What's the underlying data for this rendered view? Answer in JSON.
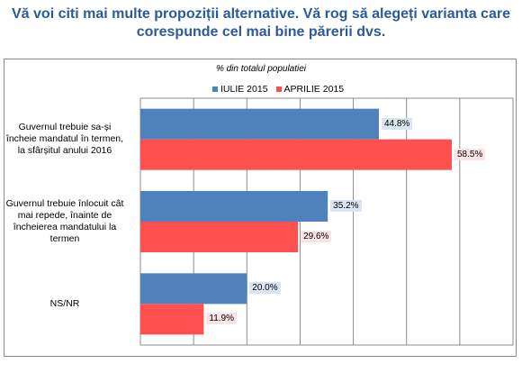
{
  "title": {
    "line1": "Vă voi citi mai multe propoziții alternative. Vă rog să alegeți varianta care",
    "line2": "corespunde cel mai bine părerii dvs."
  },
  "chart_data": {
    "type": "bar",
    "orientation": "horizontal",
    "subtitle": "% din totalul populatiei",
    "categories": [
      "Guvernul trebuie sa-și încheie mandatul în termen, la sfârșitul anului 2016",
      "Guvernul trebuie înlocuit cât mai repede, înainte de încheierea mandatului la termen",
      "NS/NR"
    ],
    "category_lines": [
      [
        "Guvernul trebuie sa-și",
        "încheie mandatul în termen,",
        "la sfârșitul anului 2016"
      ],
      [
        "Guvernul trebuie înlocuit cât",
        "mai repede, înainte de",
        "încheierea mandatului la",
        "termen"
      ],
      [
        "NS/NR"
      ]
    ],
    "series": [
      {
        "name": "IULIE 2015",
        "values": [
          44.8,
          35.2,
          20.0
        ],
        "labels": [
          "44.8%",
          "35.2%",
          "20.0%"
        ]
      },
      {
        "name": "APRILIE 2015",
        "values": [
          58.5,
          29.6,
          11.9
        ],
        "labels": [
          "58.5%",
          "29.6%",
          "11.9%"
        ]
      }
    ],
    "xlim": [
      0,
      70
    ],
    "grid": true,
    "legend_position": "top",
    "colors": {
      "IULIE 2015": "#4f81bd",
      "APRILIE 2015": "#ff5050"
    },
    "label_bg": {
      "IULIE 2015": "#dbe5f1",
      "APRILIE 2015": "#fbe4e4"
    }
  }
}
